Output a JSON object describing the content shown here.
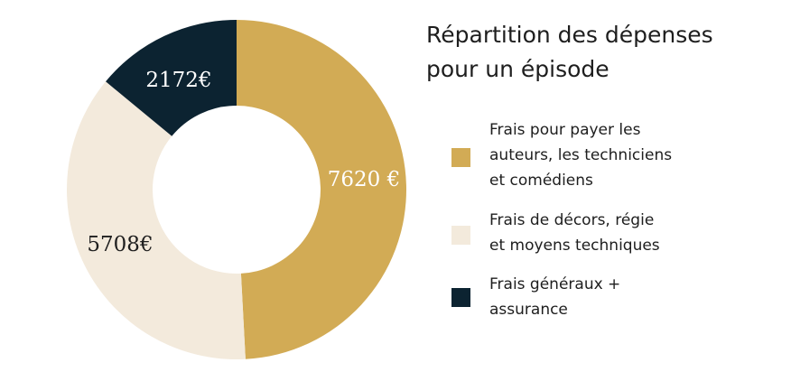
{
  "chart_data": {
    "type": "pie",
    "title": "Répartition des dépenses\npour un épisode",
    "categories": [
      "Frais pour payer les auteurs, les techniciens et comédiens",
      "Frais de décors, régie et moyens techniques",
      "Frais généraux + assurance"
    ],
    "values": [
      7620,
      5708,
      2172
    ],
    "value_labels": [
      "7620 €",
      "5708€",
      "2172€"
    ],
    "colors": [
      "#d2ab55",
      "#f3eadc",
      "#0c2331"
    ],
    "label_colors": [
      "#ffffff",
      "#1e1e1e",
      "#ffffff"
    ],
    "donut": true,
    "legend_position": "right"
  },
  "legend": {
    "items": [
      {
        "label": "Frais pour payer les\nauteurs, les techniciens\net comédiens",
        "color": "#d2ab55"
      },
      {
        "label": "Frais de décors, régie\net moyens techniques",
        "color": "#f3eadc"
      },
      {
        "label": "Frais généraux +\nassurance",
        "color": "#0c2331"
      }
    ]
  }
}
